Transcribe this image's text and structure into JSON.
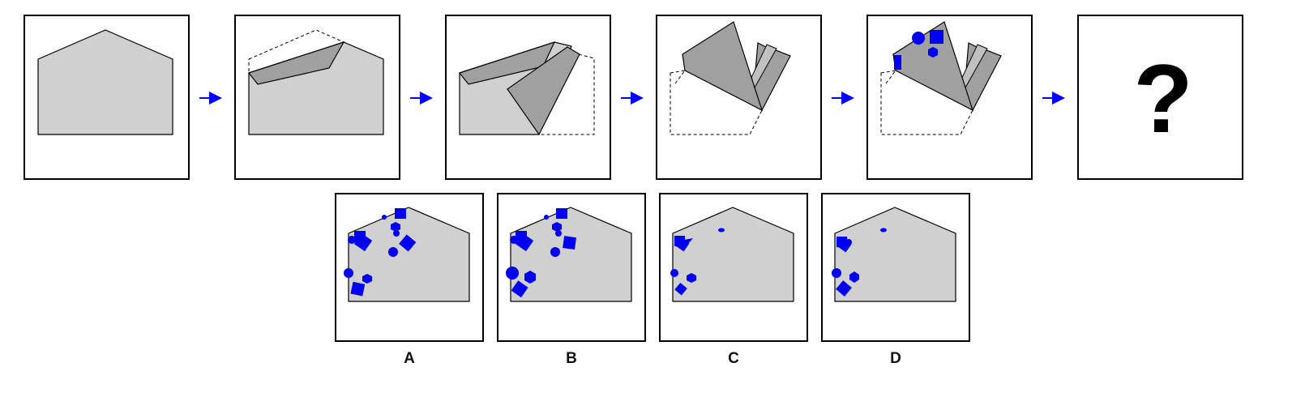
{
  "puzzle": {
    "question_mark": "?",
    "options": [
      {
        "label": "A"
      },
      {
        "label": "B"
      },
      {
        "label": "C"
      },
      {
        "label": "D"
      }
    ]
  },
  "colors": {
    "paper": "#d0d0d0",
    "fold": "#a0a0a0",
    "holes": "#0000ee",
    "arrow": "#0000ff"
  }
}
